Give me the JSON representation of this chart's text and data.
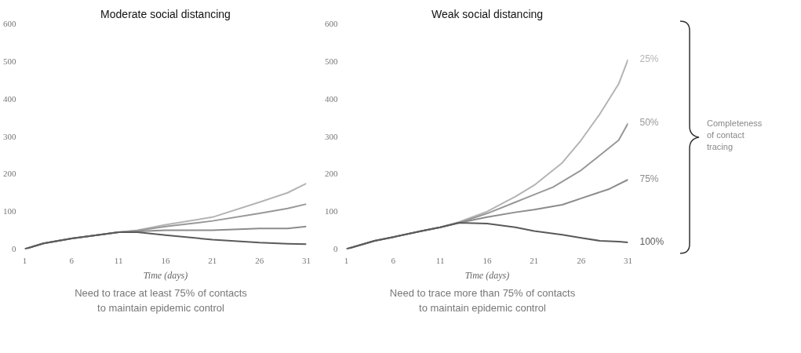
{
  "chart_data": [
    {
      "type": "line",
      "title": "Moderate social distancing",
      "xlabel": "Time (days)",
      "xlim": [
        1,
        31
      ],
      "xticks": [
        1,
        6,
        11,
        16,
        21,
        26,
        31
      ],
      "ylim": [
        0,
        600
      ],
      "yticks": [
        0,
        100,
        200,
        300,
        400,
        500,
        600
      ],
      "series": [
        {
          "color": "#b4b4b4",
          "x": [
            1,
            3,
            6,
            9,
            11,
            13,
            16,
            21,
            26,
            29,
            31
          ],
          "values": [
            0,
            15,
            28,
            38,
            45,
            50,
            65,
            85,
            125,
            150,
            175
          ]
        },
        {
          "color": "#989898",
          "x": [
            1,
            3,
            6,
            9,
            11,
            13,
            16,
            21,
            26,
            29,
            31
          ],
          "values": [
            0,
            15,
            28,
            38,
            45,
            49,
            60,
            75,
            95,
            108,
            120
          ]
        },
        {
          "color": "#8c8c8c",
          "x": [
            1,
            3,
            6,
            9,
            11,
            13,
            16,
            21,
            26,
            29,
            31
          ],
          "values": [
            0,
            15,
            28,
            38,
            45,
            47,
            50,
            50,
            55,
            55,
            60
          ]
        },
        {
          "color": "#5a5a5a",
          "x": [
            1,
            3,
            6,
            9,
            11,
            13,
            16,
            21,
            26,
            29,
            31
          ],
          "values": [
            0,
            15,
            28,
            38,
            45,
            45,
            37,
            25,
            17,
            14,
            13
          ]
        }
      ],
      "annotations": [
        "Need to trace at least 75% of contacts\nto maintain epidemic control"
      ]
    },
    {
      "type": "line",
      "title": "Weak social distancing",
      "xlabel": "Time (days)",
      "xlim": [
        1,
        31
      ],
      "xticks": [
        1,
        6,
        11,
        16,
        21,
        26,
        31
      ],
      "ylim": [
        0,
        600
      ],
      "yticks": [
        0,
        100,
        200,
        300,
        400,
        500,
        600
      ],
      "series": [
        {
          "name": "25%",
          "color": "#b4b4b4",
          "x": [
            1,
            4,
            6,
            9,
            11,
            13,
            16,
            19,
            21,
            24,
            26,
            28,
            30,
            31
          ],
          "values": [
            0,
            22,
            32,
            48,
            58,
            72,
            100,
            140,
            170,
            230,
            290,
            360,
            440,
            505
          ]
        },
        {
          "name": "50%",
          "color": "#989898",
          "x": [
            1,
            4,
            6,
            9,
            11,
            13,
            16,
            19,
            21,
            23,
            26,
            28,
            30,
            31
          ],
          "values": [
            0,
            22,
            32,
            48,
            58,
            70,
            95,
            125,
            145,
            165,
            210,
            250,
            290,
            335
          ]
        },
        {
          "name": "75%",
          "color": "#8c8c8c",
          "x": [
            1,
            4,
            6,
            9,
            11,
            13,
            16,
            19,
            21,
            24,
            26,
            29,
            31
          ],
          "values": [
            0,
            22,
            32,
            48,
            58,
            70,
            85,
            98,
            105,
            118,
            135,
            160,
            185
          ]
        },
        {
          "name": "100%",
          "color": "#5a5a5a",
          "x": [
            1,
            4,
            6,
            9,
            11,
            13,
            16,
            19,
            21,
            24,
            26,
            28,
            30,
            31
          ],
          "values": [
            0,
            22,
            32,
            48,
            58,
            70,
            68,
            58,
            48,
            38,
            30,
            22,
            20,
            18
          ]
        }
      ],
      "annotations": [
        "Need to trace more than 75% of contacts\nto maintain epidemic control",
        "Completeness\nof contact\ntracing"
      ]
    }
  ]
}
